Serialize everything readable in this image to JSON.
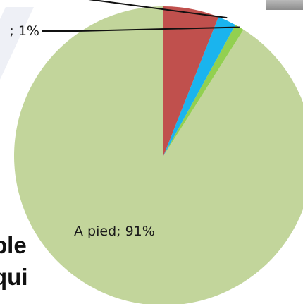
{
  "background_text": {
    "line1": "ble",
    "line2": "qui"
  },
  "chart_data": {
    "type": "pie",
    "slices": [
      {
        "label": "A pied",
        "value": 91,
        "display": "A pied; 91%",
        "color": "#c2d59b"
      },
      {
        "label": "",
        "value": 1,
        "display": "; 1%",
        "color": "#92d050"
      },
      {
        "label": "",
        "value": 2,
        "display": "",
        "color": "#1ab4ee"
      },
      {
        "label": "",
        "value": 6,
        "display": "",
        "color": "#c0504d"
      }
    ],
    "start_angle_deg": 0,
    "direction": "counterclockwise",
    "label_color": "#1a1a1a",
    "leader_color": "#111111"
  }
}
